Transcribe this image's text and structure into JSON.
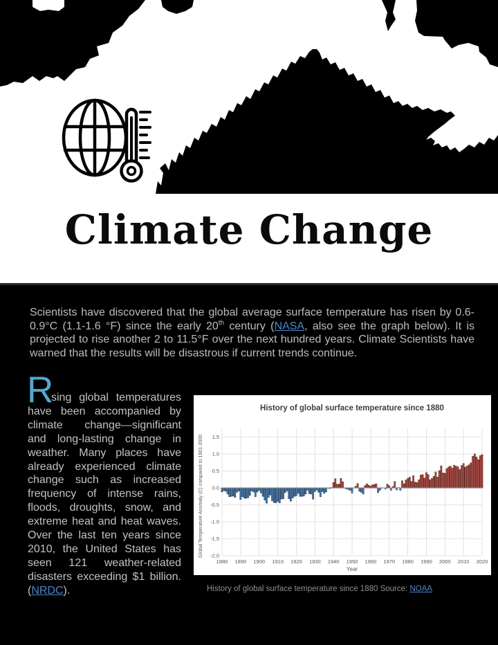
{
  "colors": {
    "link_blue": "#4a86c6",
    "dropcap_blue": "#55a7cd",
    "body_text": "#bcbdbf",
    "page_bg_top": "#ffffff",
    "page_bg_bottom": "#000000"
  },
  "header": {
    "title": "Climate Change",
    "icon": "globe-thermometer-icon"
  },
  "intro": {
    "part1": "Scientists have discovered that the global average surface temperature has risen by 0.6-0.9°C (1.1-1.6 °F) since the early 20",
    "superscript": "th",
    "part2": " century (",
    "link_nasa": "NASA",
    "part3": ", also see the graph below). It is projected to rise another 2 to 11.5°F over the next hundred years.  Climate Scientists have warned that the results will be disastrous if current trends continue."
  },
  "article": {
    "dropcap": "R",
    "body_pre": "sing global temperatures have been accompanied by climate change—significant and long-lasting change in weather.  Many places have already experienced climate change such as increased frequency of intense rains, floods, droughts, snow, and extreme heat and heat waves. Over the last ten years since 2010, the United States has seen 121 weather-related disasters exceeding $1 billion. (",
    "link_nrdc": "NRDC",
    "body_post": ")."
  },
  "caption": {
    "text": "History of global surface temperature since 1880 Source: ",
    "link_noaa": "NOAA"
  },
  "chart_data": {
    "type": "bar",
    "title": "History of global surface temperature since 1880",
    "xlabel": "Year",
    "ylabel": "Global Temperature Anomaly (C) compared to 1901-2000",
    "x_start": 1880,
    "x_end": 2020,
    "ylim": [
      -2.0,
      1.5
    ],
    "yticks": [
      1.5,
      1.0,
      0.5,
      0.0,
      -0.5,
      -1.0,
      -1.5,
      -2.0
    ],
    "xticks": [
      1880,
      1890,
      1900,
      1910,
      1920,
      1930,
      1940,
      1950,
      1960,
      1970,
      1980,
      1990,
      2000,
      2010,
      2020
    ],
    "grid": true,
    "legend": "none",
    "positive_color": "#b25048",
    "positive_stroke": "#50201a",
    "negative_color": "#4d7dad",
    "negative_stroke": "#1f3a55",
    "values": [
      -0.12,
      -0.08,
      -0.1,
      -0.18,
      -0.26,
      -0.25,
      -0.24,
      -0.28,
      -0.13,
      -0.09,
      -0.34,
      -0.26,
      -0.3,
      -0.31,
      -0.29,
      -0.22,
      -0.09,
      -0.12,
      -0.26,
      -0.12,
      -0.07,
      -0.15,
      -0.25,
      -0.36,
      -0.45,
      -0.28,
      -0.21,
      -0.38,
      -0.43,
      -0.44,
      -0.4,
      -0.44,
      -0.33,
      -0.32,
      -0.14,
      -0.09,
      -0.32,
      -0.39,
      -0.3,
      -0.25,
      -0.23,
      -0.16,
      -0.25,
      -0.25,
      -0.24,
      -0.18,
      -0.07,
      -0.17,
      -0.18,
      -0.33,
      -0.11,
      -0.06,
      -0.13,
      -0.26,
      -0.11,
      -0.16,
      -0.12,
      -0.01,
      -0.02,
      0.01,
      0.16,
      0.27,
      0.11,
      0.11,
      0.28,
      0.18,
      -0.01,
      -0.03,
      -0.05,
      -0.07,
      -0.15,
      0.0,
      0.05,
      0.13,
      -0.1,
      -0.13,
      -0.18,
      0.07,
      0.12,
      0.08,
      0.05,
      0.09,
      0.1,
      0.12,
      -0.14,
      -0.07,
      -0.01,
      0.0,
      -0.03,
      0.11,
      0.06,
      -0.07,
      0.04,
      0.19,
      -0.06,
      0.01,
      -0.07,
      0.21,
      0.12,
      0.23,
      0.28,
      0.32,
      0.19,
      0.36,
      0.17,
      0.16,
      0.24,
      0.38,
      0.39,
      0.29,
      0.45,
      0.39,
      0.24,
      0.28,
      0.34,
      0.47,
      0.32,
      0.51,
      0.65,
      0.44,
      0.43,
      0.57,
      0.62,
      0.64,
      0.58,
      0.67,
      0.64,
      0.62,
      0.54,
      0.66,
      0.72,
      0.61,
      0.65,
      0.68,
      0.74,
      0.93,
      1.0,
      0.91,
      0.83,
      0.95,
      0.98
    ]
  }
}
